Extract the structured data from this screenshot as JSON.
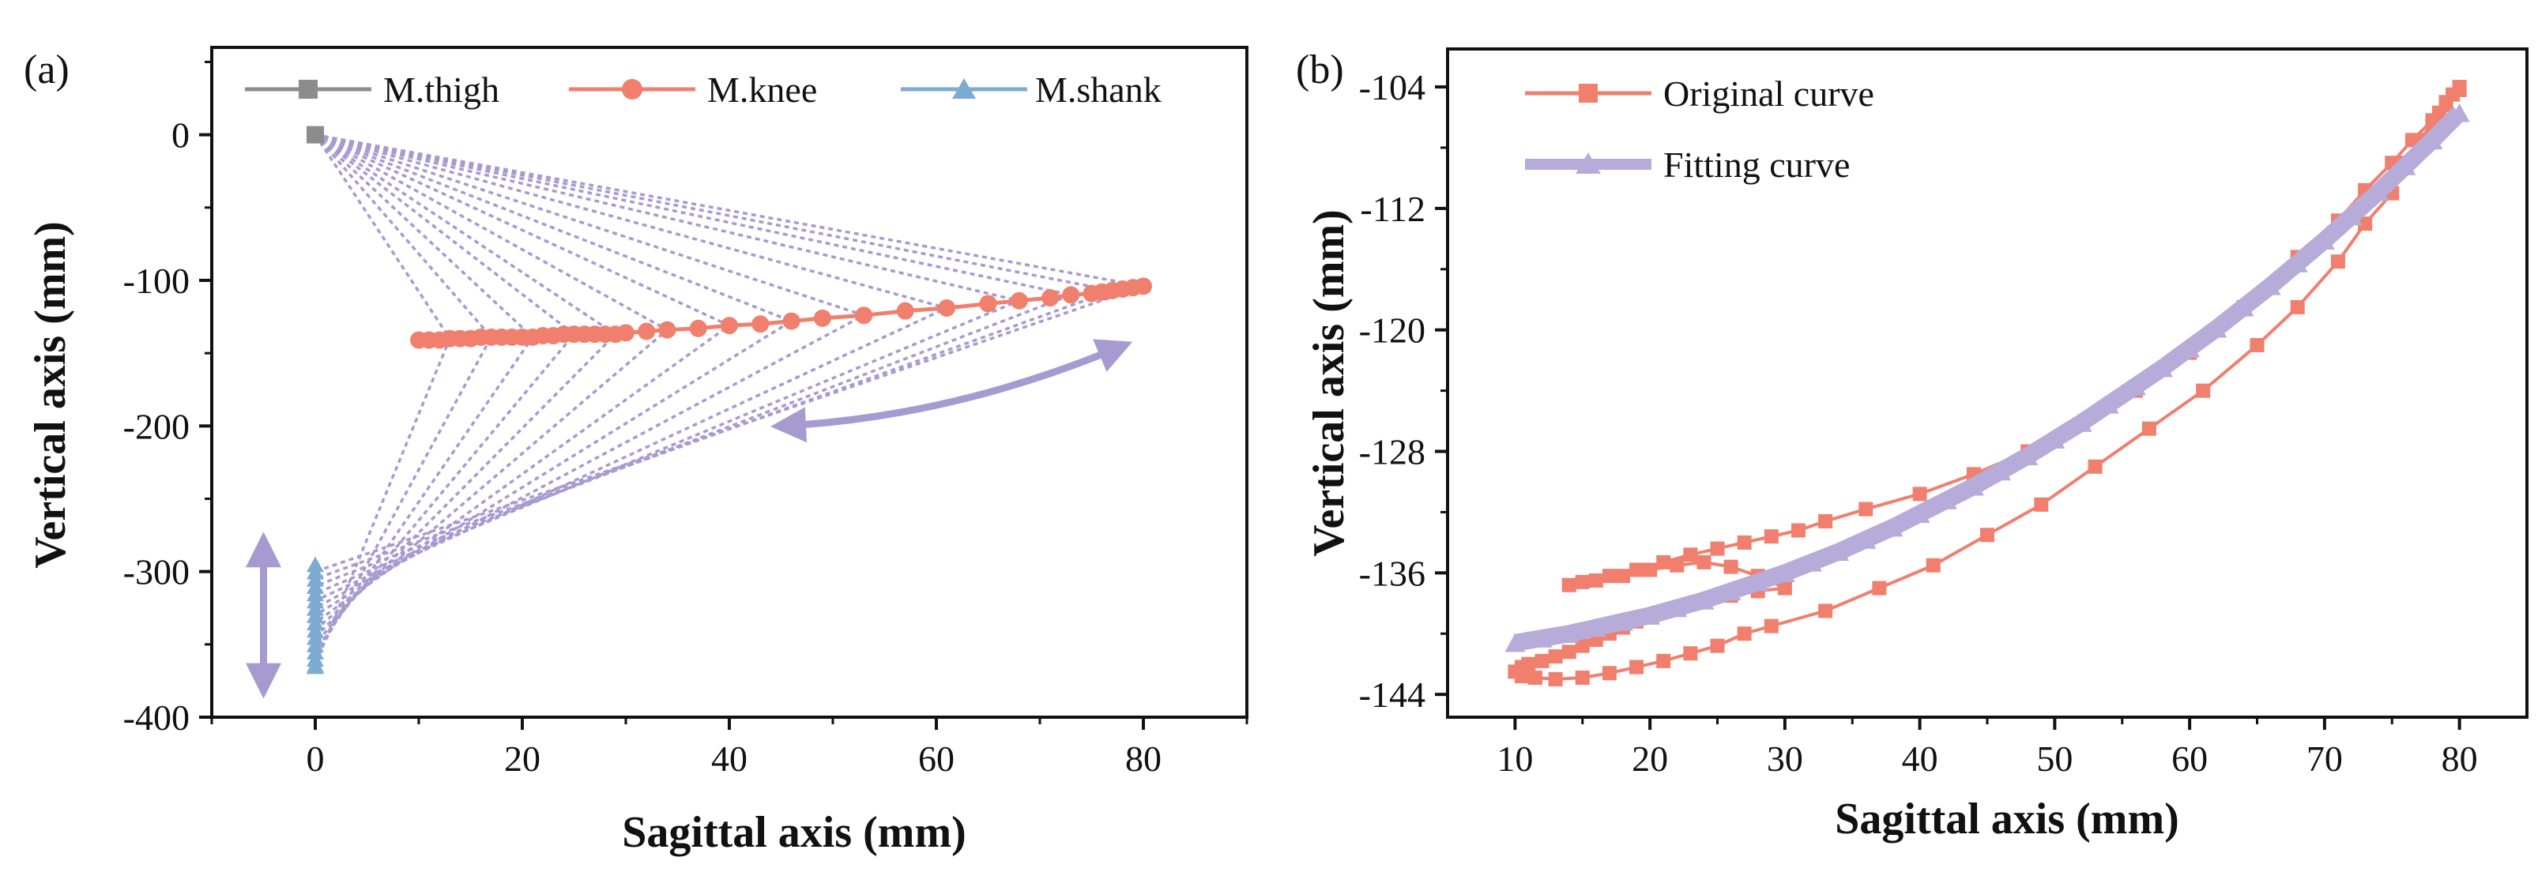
{
  "colors": {
    "thigh": "#8c8c8c",
    "knee": "#f07f6e",
    "shank": "#7eabd2",
    "linkage": "#a79ad1",
    "fit": "#b7abd9",
    "axis": "#111111"
  },
  "chart_data": [
    {
      "panel_label": "(a)",
      "type": "line",
      "xlabel": "Sagittal axis (mm)",
      "ylabel": "Vertical axis (mm)",
      "xlim": [
        -10,
        90
      ],
      "ylim": [
        -400,
        60
      ],
      "xticks": [
        0,
        20,
        40,
        60,
        80
      ],
      "yticks": [
        0,
        -100,
        -200,
        -300,
        -400
      ],
      "xtick_labels": [
        "0",
        "20",
        "40",
        "60",
        "80"
      ],
      "ytick_labels": [
        "0",
        "-100",
        "-200",
        "-300",
        "-400"
      ],
      "legend_position": "top",
      "legend": [
        "M.thigh",
        "M.knee",
        "M.shank"
      ],
      "series": [
        {
          "name": "M.thigh",
          "marker": "square",
          "color_key": "thigh",
          "x": [
            0
          ],
          "y": [
            0
          ]
        },
        {
          "name": "M.knee",
          "marker": "circle",
          "color_key": "knee",
          "x": [
            10,
            11,
            12,
            13,
            14,
            15,
            16,
            17,
            18,
            19,
            20,
            21,
            22,
            23,
            24,
            25,
            26,
            27,
            28,
            29,
            30,
            32,
            34,
            37,
            40,
            43,
            46,
            49,
            53,
            57,
            61,
            65,
            68,
            71,
            73,
            75,
            76,
            77,
            78,
            79,
            80
          ],
          "y": [
            -141,
            -141,
            -141,
            -140,
            -140,
            -140,
            -139,
            -139,
            -139,
            -139,
            -139,
            -139,
            -138,
            -138,
            -137,
            -137,
            -137,
            -137,
            -137,
            -137,
            -136,
            -135,
            -134,
            -133,
            -131,
            -130,
            -128,
            -126,
            -124,
            -121,
            -119,
            -116,
            -114,
            -112,
            -110,
            -109,
            -108,
            -107,
            -106,
            -105,
            -104
          ]
        },
        {
          "name": "M.shank",
          "marker": "triangle",
          "color_key": "shank",
          "x": [
            0,
            0,
            0,
            0,
            0,
            0,
            0,
            0,
            0,
            0,
            0,
            0,
            0,
            0,
            0,
            0
          ],
          "y": [
            -295,
            -300,
            -305,
            -310,
            -315,
            -320,
            -325,
            -330,
            -335,
            -340,
            -345,
            -350,
            -355,
            -360,
            -364,
            -365
          ]
        }
      ],
      "linkage_frames": [
        {
          "knee": [
            80,
            -104
          ],
          "shank": [
            0,
            -300
          ]
        },
        {
          "knee": [
            77,
            -107
          ],
          "shank": [
            0,
            -305
          ]
        },
        {
          "knee": [
            73,
            -110
          ],
          "shank": [
            0,
            -310
          ]
        },
        {
          "knee": [
            68,
            -114
          ],
          "shank": [
            0,
            -315
          ]
        },
        {
          "knee": [
            61,
            -119
          ],
          "shank": [
            0,
            -320
          ]
        },
        {
          "knee": [
            53,
            -124
          ],
          "shank": [
            0,
            -325
          ]
        },
        {
          "knee": [
            46,
            -128
          ],
          "shank": [
            0,
            -330
          ]
        },
        {
          "knee": [
            40,
            -131
          ],
          "shank": [
            0,
            -335
          ]
        },
        {
          "knee": [
            34,
            -134
          ],
          "shank": [
            0,
            -340
          ]
        },
        {
          "knee": [
            29,
            -137
          ],
          "shank": [
            0,
            -345
          ]
        },
        {
          "knee": [
            25,
            -137
          ],
          "shank": [
            0,
            -350
          ]
        },
        {
          "knee": [
            21,
            -139
          ],
          "shank": [
            0,
            -355
          ]
        },
        {
          "knee": [
            17,
            -139
          ],
          "shank": [
            0,
            -360
          ]
        },
        {
          "knee": [
            13,
            -140
          ],
          "shank": [
            0,
            -364
          ]
        }
      ],
      "annotations": [
        {
          "type": "double-arrow-curved",
          "from": [
            45,
            -200
          ],
          "to": [
            78,
            -145
          ]
        },
        {
          "type": "double-arrow-vertical",
          "x": -5,
          "from": [
            -5,
            -280
          ],
          "to": [
            -5,
            -380
          ]
        }
      ]
    },
    {
      "panel_label": "(b)",
      "type": "line",
      "xlabel": "Sagittal axis (mm)",
      "ylabel": "Vertical axis (mm)",
      "xlim": [
        5,
        85
      ],
      "ylim": [
        -145.5,
        -101.5
      ],
      "xticks": [
        10,
        20,
        30,
        40,
        50,
        60,
        70,
        80
      ],
      "yticks": [
        -104,
        -112,
        -120,
        -128,
        -136,
        -144
      ],
      "xtick_labels": [
        "10",
        "20",
        "30",
        "40",
        "50",
        "60",
        "70",
        "80"
      ],
      "ytick_labels": [
        "-104",
        "-112",
        "-120",
        "-128",
        "-136",
        "-144"
      ],
      "legend_position": "top-left",
      "legend": [
        "Original curve",
        "Fitting curve"
      ],
      "series": [
        {
          "name": "Original curve",
          "marker": "square",
          "color_key": "knee",
          "x": [
            80,
            79.5,
            79,
            78.5,
            78,
            77,
            76,
            75,
            73,
            71,
            68,
            65,
            61,
            57,
            53,
            49,
            45,
            41,
            37,
            33,
            29,
            27,
            25,
            23,
            21,
            19,
            17,
            15,
            13,
            11.5,
            10.5,
            10,
            10.5,
            11,
            12,
            13,
            14,
            15,
            16,
            17,
            18,
            19,
            20,
            22,
            24,
            26,
            28,
            30,
            28,
            26,
            24,
            22,
            20,
            18,
            16,
            14,
            15,
            17,
            19,
            21,
            23,
            25,
            27,
            29,
            31,
            33,
            36,
            40,
            44,
            48,
            52,
            56,
            60,
            64,
            68,
            71,
            73,
            75,
            76.5,
            78,
            79,
            80
          ],
          "y": [
            -104,
            -104.5,
            -105,
            -105.7,
            -106.5,
            -107.5,
            -109,
            -111,
            -113,
            -115.5,
            -118.5,
            -121,
            -124,
            -126.5,
            -129,
            -131.5,
            -133.5,
            -135.5,
            -137,
            -138.5,
            -139.5,
            -140,
            -140.8,
            -141.3,
            -141.8,
            -142.2,
            -142.6,
            -142.9,
            -143,
            -142.9,
            -142.8,
            -142.5,
            -142.2,
            -142,
            -141.8,
            -141.5,
            -141.2,
            -140.8,
            -140.4,
            -140,
            -139.6,
            -139.2,
            -138.9,
            -138.4,
            -137.9,
            -137.5,
            -137.2,
            -137,
            -136.2,
            -135.6,
            -135.3,
            -135.5,
            -135.8,
            -136.2,
            -136.5,
            -136.8,
            -136.6,
            -136.2,
            -135.8,
            -135.3,
            -134.8,
            -134.4,
            -134,
            -133.6,
            -133.2,
            -132.6,
            -131.8,
            -130.8,
            -129.5,
            -128,
            -126.2,
            -124,
            -121.5,
            -118.5,
            -115.2,
            -112.8,
            -110.8,
            -109,
            -107.5,
            -106.2,
            -105.2,
            -104.2
          ]
        },
        {
          "name": "Fitting curve",
          "marker": "triangle",
          "color_key": "fit",
          "x": [
            10,
            12,
            14,
            16,
            18,
            20,
            22,
            24,
            26,
            28,
            30,
            32,
            34,
            36,
            38,
            40,
            42,
            44,
            46,
            48,
            50,
            52,
            54,
            56,
            58,
            60,
            62,
            64,
            66,
            68,
            70,
            72,
            74,
            76,
            78,
            80
          ],
          "y": [
            -140.6,
            -140.3,
            -140.0,
            -139.6,
            -139.2,
            -138.8,
            -138.3,
            -137.8,
            -137.2,
            -136.6,
            -136.0,
            -135.3,
            -134.6,
            -133.8,
            -133.0,
            -132.1,
            -131.2,
            -130.3,
            -129.3,
            -128.3,
            -127.2,
            -126.1,
            -124.9,
            -123.7,
            -122.5,
            -121.2,
            -119.9,
            -118.5,
            -117.1,
            -115.6,
            -114.1,
            -112.5,
            -110.9,
            -109.2,
            -107.5,
            -105.7
          ]
        }
      ]
    }
  ]
}
